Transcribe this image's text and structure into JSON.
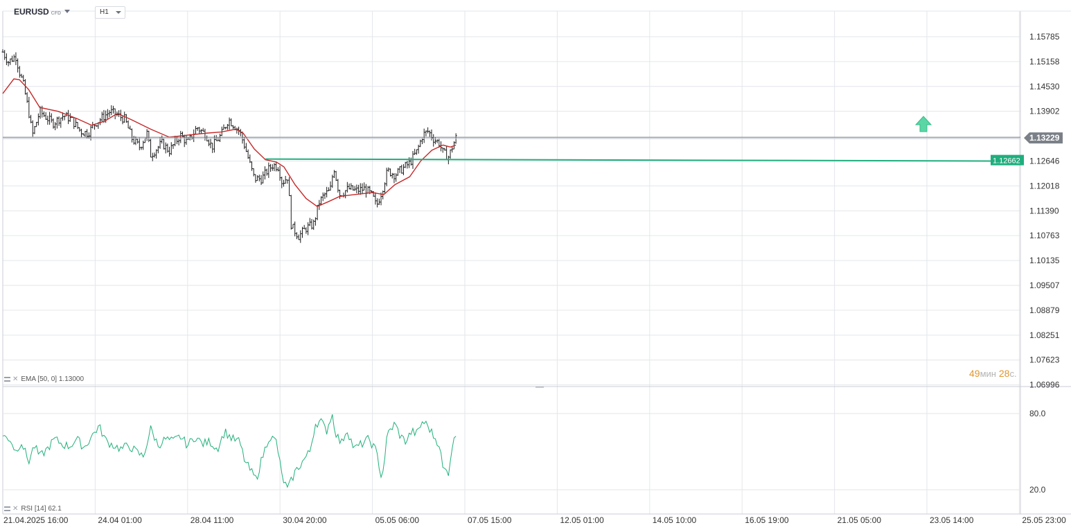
{
  "header": {
    "symbol": "EURUSD",
    "instrument_type": "CFD",
    "timeframe": "H1"
  },
  "indicators": {
    "ema_label": "EMA [50, 0]",
    "ema_value": "1.13000",
    "rsi_label": "RSI [14]",
    "rsi_value": "62.1"
  },
  "countdown": {
    "minutes": "49",
    "min_unit": "мин",
    "seconds": "28",
    "sec_unit": "с."
  },
  "colors": {
    "candle": "#1a1a1a",
    "ema": "#c62828",
    "rsi": "#20b07a",
    "support": "#1fae7d",
    "grid": "#e3e6ea",
    "price_tag": "#7b8088",
    "support_tag": "#1fae7d",
    "arrow": "#5cd6a4"
  },
  "chart_data": [
    {
      "type": "candlestick",
      "symbol": "EURUSD",
      "y_ticks": [
        "1.15785",
        "1.15158",
        "1.14530",
        "1.13902",
        "1.13229",
        "1.12646",
        "1.12018",
        "1.11390",
        "1.10763",
        "1.10135",
        "1.09507",
        "1.08879",
        "1.08251",
        "1.07623",
        "1.06996"
      ],
      "ylim": [
        1.06996,
        1.15785
      ],
      "current_price": "1.13229",
      "support_level": "1.12662",
      "x_tick_labels": [
        "21.04.2025  16:00",
        "24.04  01:00",
        "28.04  11:00",
        "30.04  20:00",
        "05.05  06:00",
        "07.05  15:00",
        "12.05  01:00",
        "14.05  10:00",
        "16.05  19:00",
        "21.05  05:00",
        "23.05  14:00",
        "25.05  23:00"
      ],
      "close_path": [
        [
          0,
          1.154
        ],
        [
          0.03,
          1.1515
        ],
        [
          0.07,
          1.153
        ],
        [
          0.09,
          1.149
        ],
        [
          0.11,
          1.146
        ],
        [
          0.14,
          1.139
        ],
        [
          0.16,
          1.133
        ],
        [
          0.2,
          1.139
        ],
        [
          0.27,
          1.136
        ],
        [
          0.33,
          1.138
        ],
        [
          0.37,
          1.137
        ],
        [
          0.42,
          1.134
        ],
        [
          0.46,
          1.1335
        ],
        [
          0.5,
          1.136
        ],
        [
          0.58,
          1.139
        ],
        [
          0.62,
          1.138
        ],
        [
          0.66,
          1.137
        ],
        [
          0.7,
          1.132
        ],
        [
          0.74,
          1.13
        ],
        [
          0.78,
          1.1335
        ],
        [
          0.8,
          1.128
        ],
        [
          0.86,
          1.131
        ],
        [
          0.9,
          1.129
        ],
        [
          0.96,
          1.133
        ],
        [
          1.0,
          1.131
        ],
        [
          1.05,
          1.135
        ],
        [
          1.1,
          1.133
        ],
        [
          1.13,
          1.13
        ],
        [
          1.18,
          1.133
        ],
        [
          1.22,
          1.137
        ],
        [
          1.28,
          1.134
        ],
        [
          1.31,
          1.13
        ],
        [
          1.34,
          1.125
        ],
        [
          1.36,
          1.122
        ],
        [
          1.4,
          1.122
        ],
        [
          1.43,
          1.124
        ],
        [
          1.46,
          1.1255
        ],
        [
          1.49,
          1.125
        ],
        [
          1.51,
          1.121
        ],
        [
          1.54,
          1.1225
        ],
        [
          1.56,
          1.11
        ],
        [
          1.6,
          1.1075
        ],
        [
          1.64,
          1.1095
        ],
        [
          1.68,
          1.1105
        ],
        [
          1.71,
          1.116
        ],
        [
          1.74,
          1.118
        ],
        [
          1.77,
          1.119
        ],
        [
          1.79,
          1.125
        ],
        [
          1.82,
          1.118
        ],
        [
          1.87,
          1.1195
        ],
        [
          1.91,
          1.119
        ],
        [
          1.96,
          1.1195
        ],
        [
          2.0,
          1.1175
        ],
        [
          2.02,
          1.115
        ],
        [
          2.05,
          1.119
        ],
        [
          2.08,
          1.124
        ],
        [
          2.12,
          1.123
        ],
        [
          2.16,
          1.1245
        ],
        [
          2.2,
          1.126
        ],
        [
          2.24,
          1.129
        ],
        [
          2.27,
          1.133
        ],
        [
          2.3,
          1.134
        ],
        [
          2.33,
          1.132
        ],
        [
          2.36,
          1.131
        ],
        [
          2.38,
          1.1285
        ],
        [
          2.41,
          1.1275
        ],
        [
          2.43,
          1.13
        ],
        [
          2.45,
          1.1323
        ]
      ],
      "ema_path": [
        [
          0,
          1.1435
        ],
        [
          0.06,
          1.1472
        ],
        [
          0.09,
          1.147
        ],
        [
          0.14,
          1.1445
        ],
        [
          0.2,
          1.14
        ],
        [
          0.3,
          1.139
        ],
        [
          0.4,
          1.1372
        ],
        [
          0.48,
          1.1355
        ],
        [
          0.55,
          1.1365
        ],
        [
          0.62,
          1.1385
        ],
        [
          0.7,
          1.1368
        ],
        [
          0.8,
          1.1345
        ],
        [
          0.9,
          1.1325
        ],
        [
          1.0,
          1.133
        ],
        [
          1.1,
          1.1335
        ],
        [
          1.18,
          1.1338
        ],
        [
          1.26,
          1.1345
        ],
        [
          1.3,
          1.1335
        ],
        [
          1.36,
          1.1295
        ],
        [
          1.42,
          1.1268
        ],
        [
          1.48,
          1.1262
        ],
        [
          1.52,
          1.125
        ],
        [
          1.58,
          1.1205
        ],
        [
          1.64,
          1.117
        ],
        [
          1.7,
          1.115
        ],
        [
          1.76,
          1.1162
        ],
        [
          1.82,
          1.1175
        ],
        [
          1.9,
          1.118
        ],
        [
          2.0,
          1.1185
        ],
        [
          2.06,
          1.118
        ],
        [
          2.12,
          1.1205
        ],
        [
          2.2,
          1.1225
        ],
        [
          2.26,
          1.1265
        ],
        [
          2.32,
          1.1292
        ],
        [
          2.38,
          1.1305
        ],
        [
          2.42,
          1.13
        ],
        [
          2.45,
          1.1305
        ]
      ],
      "ema_value": 1.13
    },
    {
      "type": "line",
      "name": "RSI [14]",
      "y_ticks": [
        "80.0",
        "20.0"
      ],
      "ylim": [
        20,
        80
      ],
      "last_value": 62.1,
      "rsi_path": [
        [
          0,
          62
        ],
        [
          0.04,
          60
        ],
        [
          0.07,
          50
        ],
        [
          0.1,
          58
        ],
        [
          0.14,
          42
        ],
        [
          0.17,
          55
        ],
        [
          0.2,
          46
        ],
        [
          0.24,
          52
        ],
        [
          0.28,
          60
        ],
        [
          0.32,
          56
        ],
        [
          0.36,
          54
        ],
        [
          0.4,
          60
        ],
        [
          0.44,
          53
        ],
        [
          0.48,
          62
        ],
        [
          0.52,
          70
        ],
        [
          0.56,
          58
        ],
        [
          0.6,
          55
        ],
        [
          0.64,
          52
        ],
        [
          0.68,
          55
        ],
        [
          0.72,
          50
        ],
        [
          0.76,
          46
        ],
        [
          0.8,
          68
        ],
        [
          0.84,
          55
        ],
        [
          0.88,
          60
        ],
        [
          0.92,
          58
        ],
        [
          0.96,
          62
        ],
        [
          1.0,
          55
        ],
        [
          1.04,
          62
        ],
        [
          1.08,
          56
        ],
        [
          1.12,
          58
        ],
        [
          1.16,
          52
        ],
        [
          1.2,
          66
        ],
        [
          1.24,
          60
        ],
        [
          1.28,
          58
        ],
        [
          1.31,
          42
        ],
        [
          1.34,
          35
        ],
        [
          1.37,
          28
        ],
        [
          1.4,
          44
        ],
        [
          1.44,
          62
        ],
        [
          1.48,
          58
        ],
        [
          1.51,
          30
        ],
        [
          1.54,
          20
        ],
        [
          1.58,
          34
        ],
        [
          1.62,
          42
        ],
        [
          1.66,
          50
        ],
        [
          1.69,
          72
        ],
        [
          1.72,
          74
        ],
        [
          1.75,
          66
        ],
        [
          1.78,
          80
        ],
        [
          1.8,
          65
        ],
        [
          1.83,
          56
        ],
        [
          1.86,
          68
        ],
        [
          1.9,
          52
        ],
        [
          1.94,
          56
        ],
        [
          1.98,
          60
        ],
        [
          2.02,
          50
        ],
        [
          2.05,
          28
        ],
        [
          2.08,
          64
        ],
        [
          2.12,
          72
        ],
        [
          2.15,
          62
        ],
        [
          2.18,
          58
        ],
        [
          2.21,
          66
        ],
        [
          2.24,
          64
        ],
        [
          2.27,
          74
        ],
        [
          2.3,
          70
        ],
        [
          2.33,
          62
        ],
        [
          2.36,
          56
        ],
        [
          2.38,
          36
        ],
        [
          2.41,
          34
        ],
        [
          2.43,
          55
        ],
        [
          2.45,
          62
        ]
      ]
    }
  ]
}
